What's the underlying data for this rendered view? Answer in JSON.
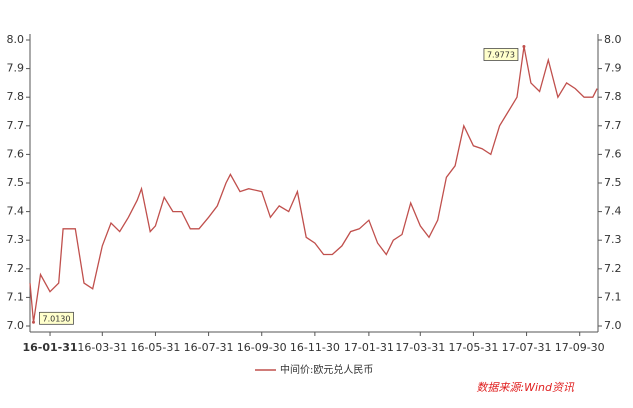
{
  "chart_data": {
    "type": "line",
    "x": [
      "16-01-08",
      "16-01-12",
      "16-01-20",
      "16-01-31",
      "16-02-10",
      "16-02-15",
      "16-02-29",
      "16-03-10",
      "16-03-20",
      "16-03-31",
      "16-04-10",
      "16-04-20",
      "16-04-30",
      "16-05-10",
      "16-05-15",
      "16-05-25",
      "16-05-31",
      "16-06-10",
      "16-06-20",
      "16-06-30",
      "16-07-10",
      "16-07-20",
      "16-07-31",
      "16-08-10",
      "16-08-20",
      "16-08-25",
      "16-09-05",
      "16-09-15",
      "16-09-30",
      "16-10-10",
      "16-10-20",
      "16-10-31",
      "16-11-10",
      "16-11-20",
      "16-11-30",
      "16-12-10",
      "16-12-20",
      "16-12-31",
      "17-01-10",
      "17-01-20",
      "17-01-31",
      "17-02-10",
      "17-02-20",
      "17-02-28",
      "17-03-10",
      "17-03-20",
      "17-03-31",
      "17-04-10",
      "17-04-20",
      "17-04-30",
      "17-05-10",
      "17-05-20",
      "17-05-31",
      "17-06-10",
      "17-06-20",
      "17-06-30",
      "17-07-10",
      "17-07-20",
      "17-07-28",
      "17-08-05",
      "17-08-15",
      "17-08-25",
      "17-09-05",
      "17-09-15",
      "17-09-25",
      "17-10-05",
      "17-10-15",
      "17-10-20"
    ],
    "series": [
      {
        "name": "中间价:欧元兑人民币",
        "color": "#c0504d",
        "values": [
          7.15,
          7.013,
          7.18,
          7.12,
          7.15,
          7.34,
          7.34,
          7.15,
          7.13,
          7.28,
          7.36,
          7.33,
          7.38,
          7.44,
          7.48,
          7.33,
          7.35,
          7.45,
          7.4,
          7.4,
          7.34,
          7.34,
          7.38,
          7.42,
          7.5,
          7.53,
          7.47,
          7.48,
          7.47,
          7.38,
          7.42,
          7.4,
          7.47,
          7.31,
          7.29,
          7.25,
          7.25,
          7.28,
          7.33,
          7.34,
          7.37,
          7.29,
          7.25,
          7.3,
          7.32,
          7.43,
          7.35,
          7.31,
          7.37,
          7.52,
          7.56,
          7.7,
          7.63,
          7.62,
          7.6,
          7.7,
          7.75,
          7.8,
          7.9773,
          7.85,
          7.82,
          7.93,
          7.8,
          7.85,
          7.83,
          7.8,
          7.8,
          7.83
        ]
      }
    ],
    "xlim": [
      "16-01-08",
      "17-10-21"
    ],
    "xticks": [
      "16-01-31",
      "16-03-31",
      "16-05-31",
      "16-07-31",
      "16-09-30",
      "16-11-30",
      "17-01-31",
      "17-03-31",
      "17-05-31",
      "17-07-31",
      "17-09-30"
    ],
    "ylim": [
      7.0,
      8.0
    ],
    "yticks": [
      {
        "value": 7.0,
        "label": "7.0"
      },
      7.1,
      7.2,
      7.3,
      7.4,
      7.5,
      7.6,
      7.7,
      7.8,
      7.9,
      {
        "value": 8.0,
        "label": "8.0"
      }
    ],
    "annotations": [
      {
        "label": "7.0130",
        "x": "16-01-12",
        "y": 7.013
      },
      {
        "label": "7.9773",
        "x": "17-07-28",
        "y": 7.9773
      }
    ],
    "source": "数据来源:Wind资讯"
  }
}
